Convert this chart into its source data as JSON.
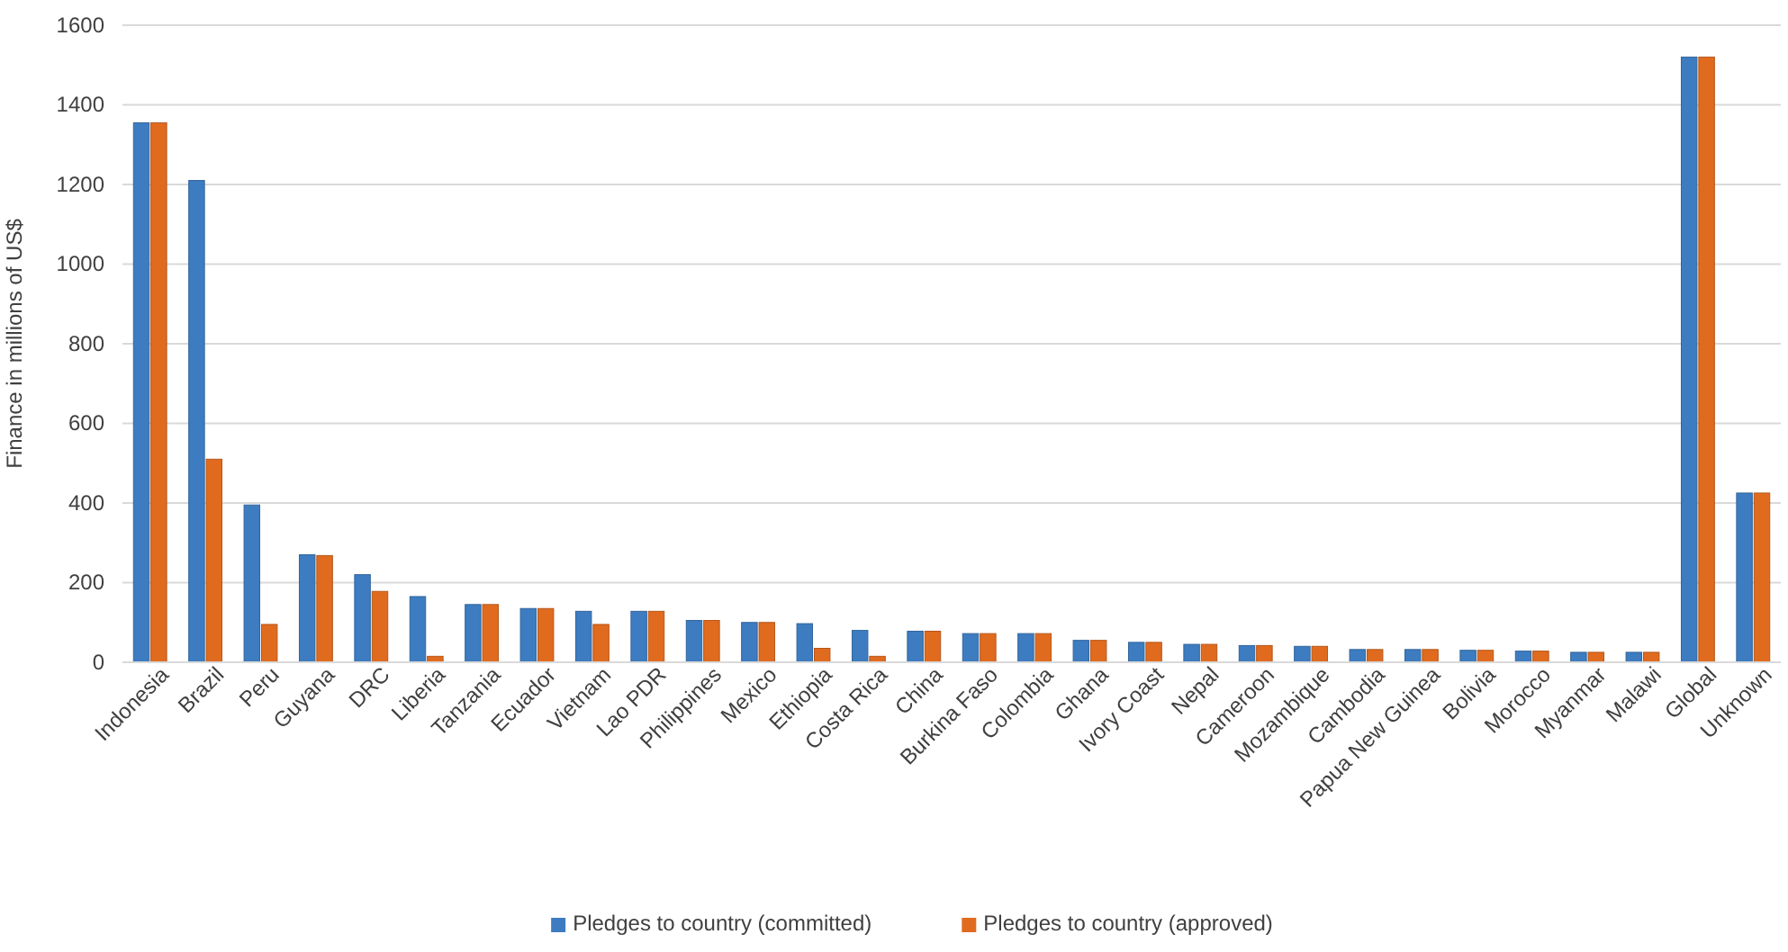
{
  "chart_data": {
    "type": "bar",
    "ylabel": "Finance in millions of US$",
    "categories": [
      "Indonesia",
      "Brazil",
      "Peru",
      "Guyana",
      "DRC",
      "Liberia",
      "Tanzania",
      "Ecuador",
      "Vietnam",
      "Lao PDR",
      "Philippines",
      "Mexico",
      "Ethiopia",
      "Costa Rica",
      "China",
      "Burkina Faso",
      "Colombia",
      "Ghana",
      "Ivory Coast",
      "Nepal",
      "Cameroon",
      "Mozambique",
      "Cambodia",
      "Papua New Guinea",
      "Bolivia",
      "Morocco",
      "Myanmar",
      "Malawi",
      "Global",
      "Unknown"
    ],
    "series": [
      {
        "name": "Pledges to country (committed)",
        "color": "#3d7cc0",
        "values": [
          1355,
          1210,
          395,
          270,
          220,
          165,
          145,
          135,
          128,
          128,
          105,
          100,
          97,
          80,
          78,
          72,
          72,
          55,
          50,
          45,
          42,
          40,
          32,
          32,
          30,
          28,
          25,
          25,
          1520,
          425
        ]
      },
      {
        "name": "Pledges to country (approved)",
        "color": "#e06b1f",
        "values": [
          1355,
          510,
          95,
          268,
          178,
          15,
          145,
          135,
          95,
          128,
          105,
          100,
          35,
          15,
          78,
          72,
          72,
          55,
          50,
          45,
          42,
          40,
          32,
          32,
          30,
          28,
          25,
          25,
          1520,
          425
        ]
      }
    ],
    "ylim": [
      0,
      1600
    ],
    "yticks": [
      0,
      200,
      400,
      600,
      800,
      1000,
      1200,
      1400,
      1600
    ],
    "grid": "y",
    "legend": "bottom"
  }
}
